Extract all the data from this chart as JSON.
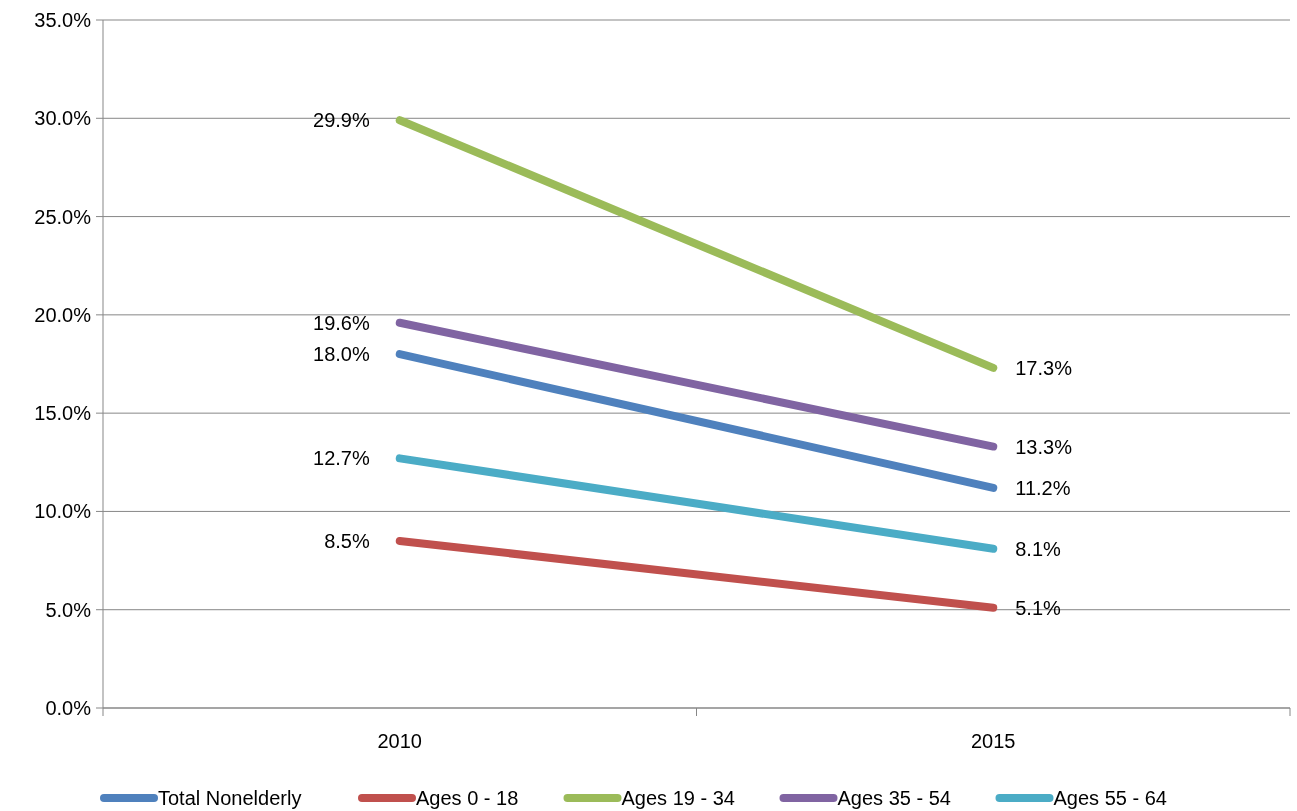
{
  "chart_data": {
    "type": "line",
    "categories": [
      "2010",
      "2015"
    ],
    "series": [
      {
        "name": "Total Nonelderly",
        "color": "#4f81bd",
        "values": [
          18.0,
          11.2
        ],
        "value_labels": [
          "18.0%",
          "11.2%"
        ]
      },
      {
        "name": "Ages 0 - 18",
        "color": "#c0504d",
        "values": [
          8.5,
          5.1
        ],
        "value_labels": [
          "8.5%",
          "5.1%"
        ]
      },
      {
        "name": "Ages 19 - 34",
        "color": "#9bbb59",
        "values": [
          29.9,
          17.3
        ],
        "value_labels": [
          "29.9%",
          "17.3%"
        ]
      },
      {
        "name": "Ages 35 - 54",
        "color": "#8064a2",
        "values": [
          19.6,
          13.3
        ],
        "value_labels": [
          "19.6%",
          "13.3%"
        ]
      },
      {
        "name": "Ages 55 - 64",
        "color": "#4bacc6",
        "values": [
          12.7,
          8.1
        ],
        "value_labels": [
          "12.7%",
          "8.1%"
        ]
      }
    ],
    "ylim": [
      0,
      35
    ],
    "yticks": [
      {
        "value": 0,
        "label": "0.0%"
      },
      {
        "value": 5,
        "label": "5.0%"
      },
      {
        "value": 10,
        "label": "10.0%"
      },
      {
        "value": 15,
        "label": "15.0%"
      },
      {
        "value": 20,
        "label": "20.0%"
      },
      {
        "value": 25,
        "label": "25.0%"
      },
      {
        "value": 30,
        "label": "30.0%"
      },
      {
        "value": 35,
        "label": "35.0%"
      }
    ],
    "grid": "y",
    "legend": "bottom",
    "marker": "none",
    "line_style": "solid"
  }
}
